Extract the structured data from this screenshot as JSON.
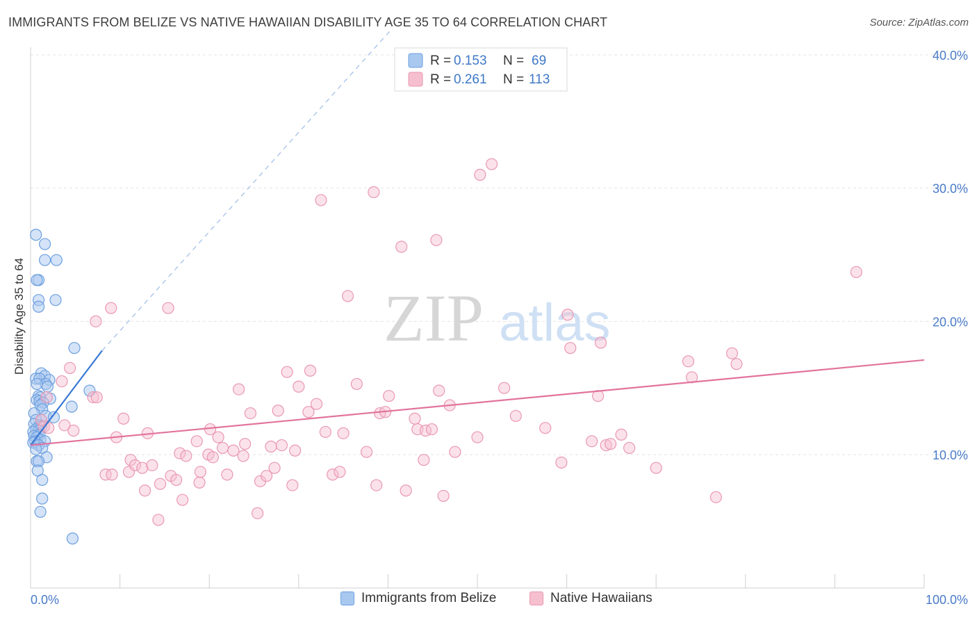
{
  "title": "IMMIGRANTS FROM BELIZE VS NATIVE HAWAIIAN DISABILITY AGE 35 TO 64 CORRELATION CHART",
  "source": "Source: ZipAtlas.com",
  "watermark": {
    "zip": "ZIP",
    "atlas": "atlas"
  },
  "colors": {
    "blue_fill": "#a9c8f0",
    "blue_stroke": "#6c9fdf",
    "blue_line": "#3a78d4",
    "pink_fill": "#f6bfd0",
    "pink_stroke": "#e997b2",
    "pink_line": "#e2739c",
    "tick_text": "#4a7bc8",
    "grid": "#e3e3e3"
  },
  "legend": {
    "rows": [
      {
        "r_label": "R = ",
        "r_value": "0.153",
        "n_label": "N = ",
        "n_value": "69"
      },
      {
        "r_label": "R = ",
        "r_value": "0.261",
        "n_label": "N = ",
        "n_value": "113"
      }
    ]
  },
  "bottom_legend": [
    "Immigrants from Belize",
    "Native Hawaiians"
  ],
  "chart_data": {
    "type": "scatter",
    "title": "IMMIGRANTS FROM BELIZE VS NATIVE HAWAIIAN DISABILITY AGE 35 TO 64 CORRELATION CHART",
    "xlabel": "",
    "ylabel": "Disability Age 35 to 64",
    "xlim": [
      0,
      100
    ],
    "ylim": [
      0,
      41
    ],
    "x_tick_labels": [
      "0.0%",
      "100.0%"
    ],
    "y_ticks": [
      10,
      20,
      30,
      40
    ],
    "y_tick_labels": [
      "10.0%",
      "20.0%",
      "30.0%",
      "40.0%"
    ],
    "grid": true,
    "legend_position": "top-center",
    "series": [
      {
        "name": "Immigrants from Belize",
        "color": "#a9c8f0",
        "trend": {
          "x": [
            0,
            8.0
          ],
          "y": [
            10.7,
            17.8
          ],
          "dashed_extension_to": [
            40.5,
            42
          ]
        },
        "points": [
          [
            0.6,
            26.5
          ],
          [
            1.6,
            25.8
          ],
          [
            1.6,
            24.6
          ],
          [
            2.9,
            24.6
          ],
          [
            0.9,
            23.1
          ],
          [
            0.7,
            23.1
          ],
          [
            0.9,
            21.6
          ],
          [
            2.8,
            21.6
          ],
          [
            0.9,
            21.1
          ],
          [
            4.9,
            18.0
          ],
          [
            1.2,
            16.1
          ],
          [
            1.6,
            15.9
          ],
          [
            0.6,
            15.7
          ],
          [
            1.0,
            15.7
          ],
          [
            2.1,
            15.6
          ],
          [
            1.7,
            15.3
          ],
          [
            0.7,
            15.3
          ],
          [
            1.9,
            15.1
          ],
          [
            6.6,
            14.8
          ],
          [
            0.9,
            14.4
          ],
          [
            1.1,
            14.3
          ],
          [
            0.7,
            14.1
          ],
          [
            2.2,
            14.2
          ],
          [
            1.0,
            14.0
          ],
          [
            1.4,
            13.9
          ],
          [
            1.1,
            13.7
          ],
          [
            4.6,
            13.6
          ],
          [
            1.3,
            13.4
          ],
          [
            0.4,
            13.1
          ],
          [
            1.7,
            12.9
          ],
          [
            2.6,
            12.8
          ],
          [
            0.6,
            12.6
          ],
          [
            1.2,
            12.6
          ],
          [
            0.4,
            12.3
          ],
          [
            1.0,
            12.2
          ],
          [
            1.2,
            12.1
          ],
          [
            0.6,
            11.9
          ],
          [
            0.9,
            11.8
          ],
          [
            0.3,
            11.7
          ],
          [
            1.0,
            11.5
          ],
          [
            0.4,
            11.4
          ],
          [
            0.7,
            11.3
          ],
          [
            1.1,
            11.1
          ],
          [
            0.5,
            11.0
          ],
          [
            1.6,
            11.0
          ],
          [
            0.3,
            10.9
          ],
          [
            0.9,
            10.7
          ],
          [
            1.3,
            10.5
          ],
          [
            0.6,
            10.4
          ],
          [
            1.8,
            9.8
          ],
          [
            0.7,
            9.5
          ],
          [
            0.9,
            9.5
          ],
          [
            0.8,
            8.8
          ],
          [
            1.3,
            8.1
          ],
          [
            1.3,
            6.7
          ],
          [
            1.1,
            5.7
          ],
          [
            4.7,
            3.7
          ]
        ]
      },
      {
        "name": "Native Hawaiians",
        "color": "#f6bfd0",
        "trend": {
          "x": [
            0,
            100
          ],
          "y": [
            10.7,
            17.1
          ]
        },
        "points": [
          [
            1.8,
            14.3
          ],
          [
            3.5,
            15.5
          ],
          [
            4.4,
            16.5
          ],
          [
            7.0,
            14.3
          ],
          [
            7.4,
            14.3
          ],
          [
            1.2,
            12.6
          ],
          [
            1.5,
            12.1
          ],
          [
            2.0,
            12.0
          ],
          [
            3.8,
            12.2
          ],
          [
            4.8,
            11.8
          ],
          [
            7.3,
            20.0
          ],
          [
            9.0,
            21.0
          ],
          [
            8.4,
            8.5
          ],
          [
            9.1,
            8.5
          ],
          [
            9.6,
            11.3
          ],
          [
            10.4,
            12.7
          ],
          [
            11.0,
            8.7
          ],
          [
            11.2,
            9.6
          ],
          [
            11.7,
            9.2
          ],
          [
            12.5,
            9.0
          ],
          [
            12.8,
            7.3
          ],
          [
            13.1,
            11.6
          ],
          [
            13.6,
            9.2
          ],
          [
            14.3,
            5.1
          ],
          [
            14.5,
            7.8
          ],
          [
            15.4,
            21.0
          ],
          [
            15.7,
            8.4
          ],
          [
            16.3,
            8.1
          ],
          [
            16.7,
            10.1
          ],
          [
            17.0,
            6.6
          ],
          [
            17.4,
            9.9
          ],
          [
            18.6,
            11.0
          ],
          [
            18.9,
            7.9
          ],
          [
            19.0,
            8.7
          ],
          [
            19.9,
            10.0
          ],
          [
            20.1,
            11.9
          ],
          [
            20.4,
            9.8
          ],
          [
            21.0,
            11.3
          ],
          [
            21.5,
            10.5
          ],
          [
            22.0,
            8.5
          ],
          [
            22.7,
            10.3
          ],
          [
            23.3,
            14.9
          ],
          [
            23.8,
            9.9
          ],
          [
            24.0,
            10.8
          ],
          [
            24.6,
            13.1
          ],
          [
            25.4,
            5.6
          ],
          [
            25.7,
            8.0
          ],
          [
            26.4,
            8.4
          ],
          [
            26.9,
            10.6
          ],
          [
            27.3,
            9.0
          ],
          [
            27.7,
            13.3
          ],
          [
            28.1,
            10.7
          ],
          [
            28.7,
            16.2
          ],
          [
            29.3,
            7.7
          ],
          [
            29.6,
            10.3
          ],
          [
            30.0,
            15.1
          ],
          [
            31.1,
            13.2
          ],
          [
            31.3,
            16.3
          ],
          [
            32.0,
            13.8
          ],
          [
            32.5,
            29.1
          ],
          [
            33.0,
            11.7
          ],
          [
            33.8,
            8.5
          ],
          [
            34.6,
            8.7
          ],
          [
            35.0,
            11.6
          ],
          [
            35.5,
            21.9
          ],
          [
            36.5,
            15.3
          ],
          [
            37.6,
            10.2
          ],
          [
            38.4,
            29.7
          ],
          [
            38.7,
            7.7
          ],
          [
            39.1,
            13.1
          ],
          [
            39.7,
            13.2
          ],
          [
            40.1,
            14.4
          ],
          [
            41.5,
            25.6
          ],
          [
            42.0,
            7.3
          ],
          [
            43.0,
            12.7
          ],
          [
            43.3,
            11.9
          ],
          [
            44.0,
            9.6
          ],
          [
            44.2,
            11.8
          ],
          [
            44.9,
            11.9
          ],
          [
            45.4,
            26.1
          ],
          [
            45.7,
            14.8
          ],
          [
            46.2,
            6.9
          ],
          [
            46.9,
            13.7
          ],
          [
            47.5,
            10.2
          ],
          [
            50.0,
            11.3
          ],
          [
            50.3,
            31.0
          ],
          [
            51.6,
            31.8
          ],
          [
            53.0,
            15.0
          ],
          [
            54.3,
            12.9
          ],
          [
            57.6,
            12.0
          ],
          [
            59.4,
            9.4
          ],
          [
            60.1,
            20.5
          ],
          [
            60.4,
            18.0
          ],
          [
            62.8,
            11.0
          ],
          [
            63.5,
            14.4
          ],
          [
            63.8,
            18.4
          ],
          [
            64.4,
            10.7
          ],
          [
            64.9,
            10.8
          ],
          [
            66.1,
            11.5
          ],
          [
            67.0,
            10.5
          ],
          [
            70.0,
            9.0
          ],
          [
            73.6,
            17.0
          ],
          [
            74.0,
            15.8
          ],
          [
            76.7,
            6.8
          ],
          [
            78.5,
            17.6
          ],
          [
            79.0,
            16.8
          ],
          [
            92.4,
            23.7
          ]
        ]
      }
    ]
  }
}
